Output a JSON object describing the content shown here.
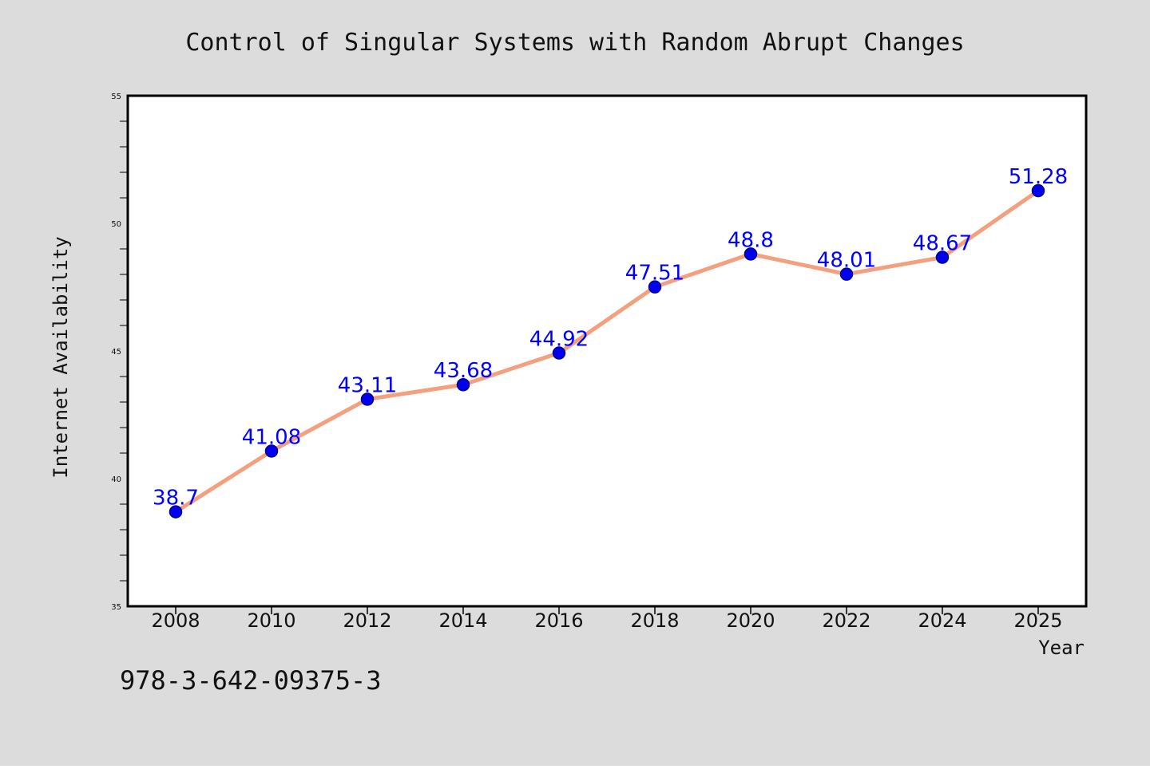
{
  "colors": {
    "background": "#dcdcdc",
    "plot_background": "#ffffff",
    "line": "#f4a07f",
    "marker": "#0000ee",
    "marker_edge": "#00008b",
    "data_label": "#0000ff",
    "axis": "#000000"
  },
  "footer": {
    "isbn": "978-3-642-09375-3"
  },
  "chart_data": {
    "type": "line",
    "title": "Control of Singular Systems with Random Abrupt Changes",
    "xlabel": "Year",
    "ylabel": "Internet Availability",
    "categories": [
      "2008",
      "2010",
      "2012",
      "2014",
      "2016",
      "2018",
      "2020",
      "2022",
      "2024",
      "2025"
    ],
    "series": [
      {
        "values": [
          38.7,
          41.08,
          43.11,
          43.68,
          44.92,
          47.51,
          48.8,
          48.01,
          48.67,
          51.28
        ],
        "labels": [
          "38.7",
          "41.08",
          "43.11",
          "43.68",
          "44.92",
          "47.51",
          "48.8",
          "48.01",
          "48.67",
          "51.28"
        ]
      }
    ],
    "ylim": [
      35,
      55
    ],
    "yticks_major": [
      "35",
      "40",
      "45",
      "50",
      "55"
    ],
    "ytick_minor_step": 1,
    "grid": false,
    "legend": "none"
  }
}
